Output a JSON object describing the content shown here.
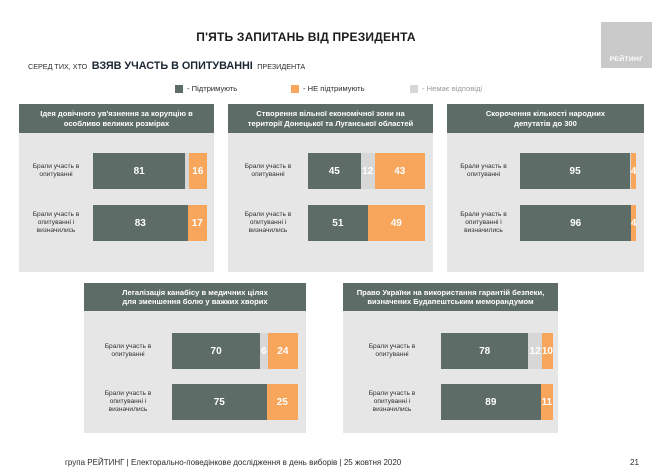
{
  "title": "П'ЯТЬ ЗАПИТАНЬ ВІД ПРЕЗИДЕНТА",
  "subtitle": {
    "prefix": "СЕРЕД ТИХ, ХТО",
    "emphasis": "ВЗЯВ УЧАСТЬ В ОПИТУВАННІ",
    "suffix": "ПРЕЗИДЕНТА"
  },
  "logo": {
    "text": "РЕЙТИНГ",
    "color": "#c9c9c9"
  },
  "legend": [
    {
      "label": "- Підтримують",
      "color": "#5d6c66"
    },
    {
      "label": "- НЕ підтримують",
      "color": "#f7a65c"
    },
    {
      "label": "- Немає відповіді",
      "color": "#d7d7d7"
    }
  ],
  "colors": {
    "panel_header": "#5d6c66",
    "panel_background": "#e6e6e6"
  },
  "chart_data": [
    {
      "type": "bar",
      "orientation": "horizontal",
      "stacked": true,
      "title": "Ідея довічного ув'язнення за корупцію в\nособливо великих розмірах",
      "categories": [
        "Брали участь в опитуванні",
        "Брали участь в опитуванні і визначились"
      ],
      "xlim": [
        0,
        100
      ],
      "series": [
        {
          "color": "#5d6c66",
          "values": [
            81,
            83
          ]
        },
        {
          "color": "#d7d7d7",
          "values": [
            3,
            0
          ]
        },
        {
          "color": "#f7a65c",
          "values": [
            16,
            17
          ]
        }
      ]
    },
    {
      "type": "bar",
      "orientation": "horizontal",
      "stacked": true,
      "title": "Створення вільної економічної зони на\nтериторії Донецької та Луганської областей",
      "categories": [
        "Брали участь в опитуванні",
        "Брали участь в опитуванні і визначились"
      ],
      "xlim": [
        0,
        100
      ],
      "series": [
        {
          "color": "#5d6c66",
          "values": [
            45,
            51
          ]
        },
        {
          "color": "#d7d7d7",
          "values": [
            12,
            0
          ]
        },
        {
          "color": "#f7a65c",
          "values": [
            43,
            49
          ]
        }
      ]
    },
    {
      "type": "bar",
      "orientation": "horizontal",
      "stacked": true,
      "title": "Скорочення кількості народних\nдепутатів до 300",
      "categories": [
        "Брали участь в опитуванні",
        "Брали участь в опитуванні і визначились"
      ],
      "xlim": [
        0,
        100
      ],
      "series": [
        {
          "color": "#5d6c66",
          "values": [
            95,
            96
          ]
        },
        {
          "color": "#d7d7d7",
          "values": [
            1,
            0
          ]
        },
        {
          "color": "#f7a65c",
          "values": [
            4,
            4
          ]
        }
      ]
    },
    {
      "type": "bar",
      "orientation": "horizontal",
      "stacked": true,
      "title": "Легалізація канабісу в медичних цілях\nдля зменшення болю у важких хворих",
      "categories": [
        "Брали участь в опитуванні",
        "Брали участь в опитуванні і визначились"
      ],
      "xlim": [
        0,
        100
      ],
      "series": [
        {
          "color": "#5d6c66",
          "values": [
            70,
            75
          ]
        },
        {
          "color": "#d7d7d7",
          "values": [
            6,
            0
          ]
        },
        {
          "color": "#f7a65c",
          "values": [
            24,
            25
          ]
        }
      ]
    },
    {
      "type": "bar",
      "orientation": "horizontal",
      "stacked": true,
      "title": "Право України на використання гарантій безпеки,\nвизначених Будапештським меморандумом",
      "categories": [
        "Брали участь в опитуванні",
        "Брали участь в опитуванні і визначились"
      ],
      "xlim": [
        0,
        100
      ],
      "series": [
        {
          "color": "#5d6c66",
          "values": [
            78,
            89
          ]
        },
        {
          "color": "#d7d7d7",
          "values": [
            12,
            0
          ]
        },
        {
          "color": "#f7a65c",
          "values": [
            10,
            11
          ]
        }
      ]
    }
  ],
  "footer": {
    "text": "група РЕЙТИНГ | Електорально-поведінкове дослідження в день виборів | 25 жовтня 2020",
    "page": "21"
  }
}
